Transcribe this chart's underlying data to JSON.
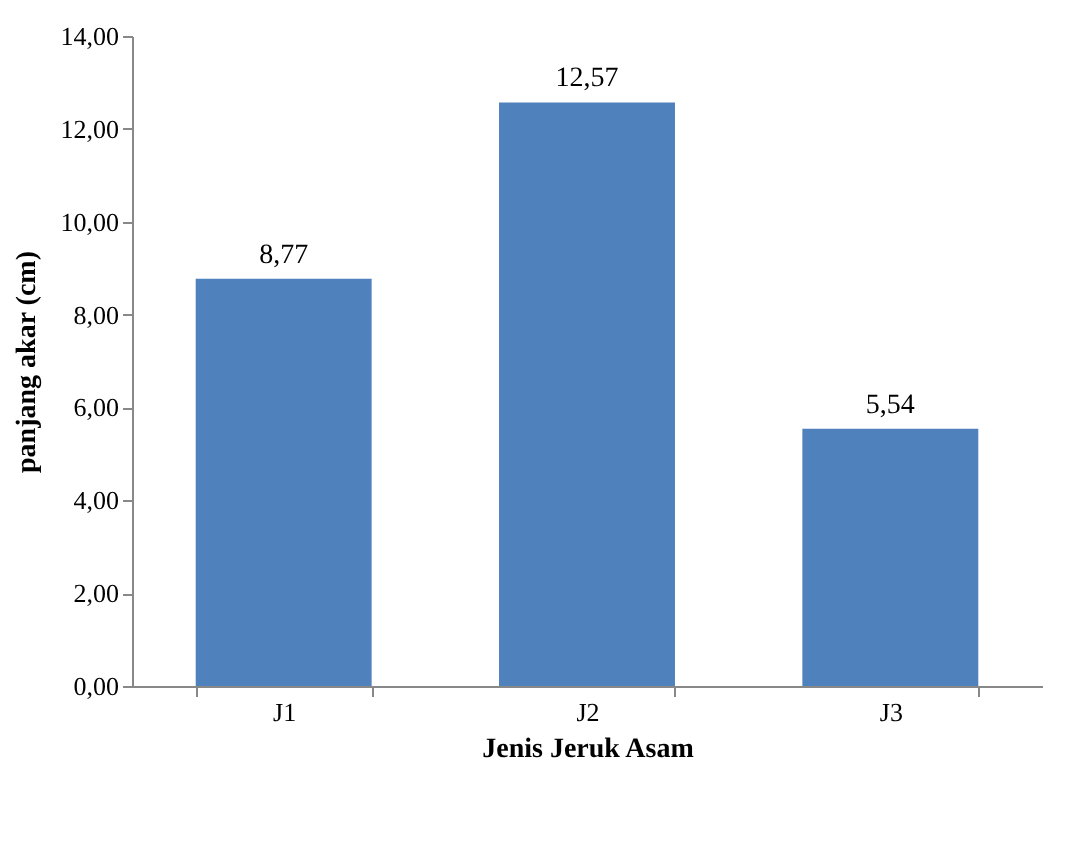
{
  "chart_data": {
    "type": "bar",
    "xlabel": "Jenis Jeruk Asam",
    "ylabel": "panjang akar (cm)",
    "categories": [
      "J1",
      "J2",
      "J3"
    ],
    "values": [
      8.77,
      12.57,
      5.54
    ],
    "value_labels": [
      "8,77",
      "12,57",
      "5,54"
    ],
    "color": "#4f81bd",
    "ylim": [
      0,
      14
    ],
    "yticks": [
      {
        "value": 0,
        "label": "0,00"
      },
      {
        "value": 2,
        "label": "2,00"
      },
      {
        "value": 4,
        "label": "4,00"
      },
      {
        "value": 6,
        "label": "6,00"
      },
      {
        "value": 8,
        "label": "8,00"
      },
      {
        "value": 10,
        "label": "10,00"
      },
      {
        "value": 12,
        "label": "12,00"
      },
      {
        "value": 14,
        "label": "14,00"
      }
    ],
    "grid": false
  }
}
